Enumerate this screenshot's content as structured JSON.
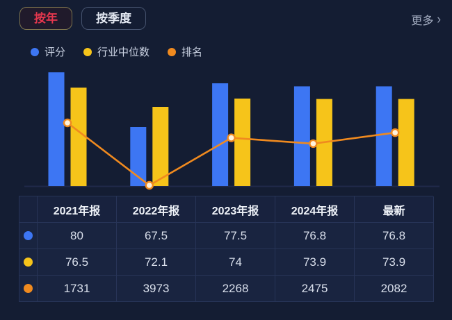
{
  "tabs": [
    {
      "label": "按年",
      "active": true
    },
    {
      "label": "按季度",
      "active": false
    }
  ],
  "more": {
    "label": "更多",
    "chevron": "›"
  },
  "legend": [
    {
      "name": "评分",
      "color": "#3d76f3"
    },
    {
      "name": "行业中位数",
      "color": "#f6c41a"
    },
    {
      "name": "排名",
      "color": "#f08a1f"
    }
  ],
  "chart_data": {
    "type": "bar",
    "title": "",
    "categories": [
      "2021年报",
      "2022年报",
      "2023年报",
      "2024年报",
      "最新"
    ],
    "series": [
      {
        "name": "评分",
        "type": "bar",
        "color": "#3d76f3",
        "values": [
          80,
          67.5,
          77.5,
          76.8,
          76.8
        ]
      },
      {
        "name": "行业中位数",
        "type": "bar",
        "color": "#f6c41a",
        "values": [
          76.5,
          72.1,
          74,
          73.9,
          73.9
        ]
      },
      {
        "name": "排名",
        "type": "line",
        "color": "#f08a1f",
        "values": [
          1731,
          3973,
          2268,
          2475,
          2082
        ],
        "axis": "rank-inverted",
        "marker": "circle-light-center"
      }
    ],
    "ylim_bars": [
      54,
      83
    ],
    "grid": false,
    "axes_labels_hidden": true,
    "legend_position": "top-left"
  },
  "table": {
    "headers": [
      "2021年报",
      "2022年报",
      "2023年报",
      "2024年报",
      "最新"
    ],
    "rows": [
      {
        "series": "评分",
        "dot_color": "#3d76f3",
        "values": [
          "80",
          "67.5",
          "77.5",
          "76.8",
          "76.8"
        ]
      },
      {
        "series": "行业中位数",
        "dot_color": "#f6c41a",
        "values": [
          "76.5",
          "72.1",
          "74",
          "73.9",
          "73.9"
        ]
      },
      {
        "series": "排名",
        "dot_color": "#f08a1f",
        "values": [
          "1731",
          "3973",
          "2268",
          "2475",
          "2082"
        ]
      }
    ]
  },
  "colors": {
    "background": "#141d33",
    "accent_red": "#e4374e",
    "bar_blue": "#3d76f3",
    "bar_yellow": "#f6c41a",
    "line_orange": "#f08a1f",
    "table_border": "#273457",
    "table_cell_bg": "#192440"
  }
}
